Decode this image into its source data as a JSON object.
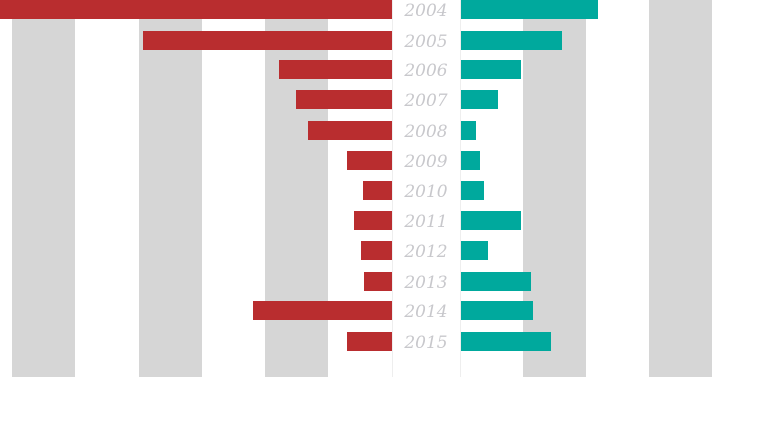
{
  "chart_data": {
    "type": "bar",
    "orientation": "horizontal-diverging",
    "title": "",
    "xlabel": "",
    "ylabel": "",
    "categories": [
      "2004",
      "2005",
      "2006",
      "2007",
      "2008",
      "2009",
      "2010",
      "2011",
      "2012",
      "2013",
      "2014",
      "2015"
    ],
    "series": [
      {
        "name": "left",
        "side": "left",
        "color": "#b92d2f",
        "values": [
          392,
          249,
          113,
          96,
          84,
          45,
          29,
          38,
          31,
          28,
          139,
          45
        ]
      },
      {
        "name": "right",
        "side": "right",
        "color": "#00a99d",
        "values": [
          137,
          101,
          60,
          37,
          15,
          19,
          23,
          60,
          27,
          70,
          72,
          90
        ]
      }
    ],
    "value_units": "pixels (no axis tick labels shown)",
    "grid": "alternating vertical bands",
    "legend": "none"
  },
  "colors": {
    "left": "#b92d2f",
    "right": "#00a99d",
    "band": "#d6d6d6",
    "label": "#c8c8cc"
  }
}
